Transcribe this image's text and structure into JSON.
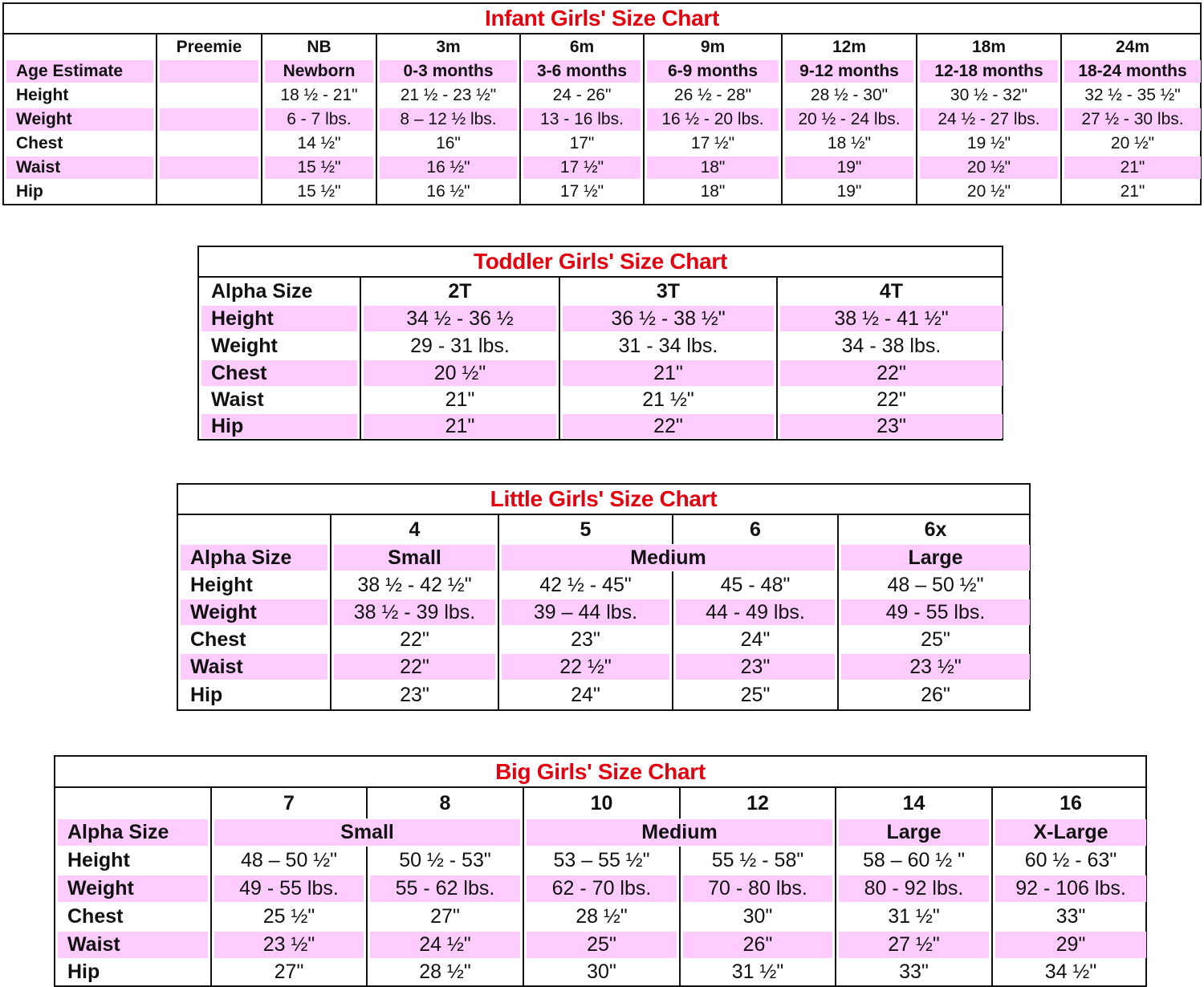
{
  "colors": {
    "title": "#e3000f",
    "highlight": "#ffccff",
    "border": "#111111"
  },
  "charts": [
    {
      "id": "infant",
      "title": "Infant Girls' Size Chart",
      "rows": [
        {
          "label": "",
          "head": true,
          "pink": false,
          "cells": [
            {
              "text": "Preemie"
            },
            {
              "text": "NB"
            },
            {
              "text": "3m"
            },
            {
              "text": "6m"
            },
            {
              "text": "9m"
            },
            {
              "text": "12m"
            },
            {
              "text": "18m"
            },
            {
              "text": "24m"
            }
          ]
        },
        {
          "label": "Age Estimate",
          "head": true,
          "pink": true,
          "cells": [
            {
              "text": ""
            },
            {
              "text": "Newborn"
            },
            {
              "text": "0-3 months"
            },
            {
              "text": "3-6 months"
            },
            {
              "text": "6-9 months"
            },
            {
              "text": "9-12 months"
            },
            {
              "text": "12-18 months"
            },
            {
              "text": "18-24 months"
            }
          ]
        },
        {
          "label": "Height",
          "pink": false,
          "cells": [
            {
              "text": ""
            },
            {
              "text": "18 ½ - 21\""
            },
            {
              "text": "21 ½ - 23 ½\""
            },
            {
              "text": "24 - 26\""
            },
            {
              "text": "26 ½ - 28\""
            },
            {
              "text": "28 ½ - 30\""
            },
            {
              "text": "30 ½ - 32\""
            },
            {
              "text": "32 ½ - 35 ½\""
            }
          ]
        },
        {
          "label": "Weight",
          "pink": true,
          "cells": [
            {
              "text": ""
            },
            {
              "text": "6 - 7 lbs."
            },
            {
              "text": "8 – 12 ½ lbs."
            },
            {
              "text": "13 - 16 lbs."
            },
            {
              "text": "16 ½ - 20 lbs."
            },
            {
              "text": "20 ½ - 24 lbs."
            },
            {
              "text": "24 ½ - 27 lbs."
            },
            {
              "text": "27 ½ - 30 lbs."
            }
          ]
        },
        {
          "label": "Chest",
          "pink": false,
          "cells": [
            {
              "text": ""
            },
            {
              "text": "14 ½\""
            },
            {
              "text": "16\""
            },
            {
              "text": "17\""
            },
            {
              "text": "17 ½\""
            },
            {
              "text": "18 ½\""
            },
            {
              "text": "19 ½\""
            },
            {
              "text": "20 ½\""
            }
          ]
        },
        {
          "label": "Waist",
          "pink": true,
          "cells": [
            {
              "text": ""
            },
            {
              "text": "15 ½\""
            },
            {
              "text": "16 ½\""
            },
            {
              "text": "17 ½\""
            },
            {
              "text": "18\""
            },
            {
              "text": "19\""
            },
            {
              "text": "20 ½\""
            },
            {
              "text": "21\""
            }
          ]
        },
        {
          "label": "Hip",
          "pink": false,
          "cells": [
            {
              "text": ""
            },
            {
              "text": "15 ½\""
            },
            {
              "text": "16 ½\""
            },
            {
              "text": "17 ½\""
            },
            {
              "text": "18\""
            },
            {
              "text": "19\""
            },
            {
              "text": "20 ½\""
            },
            {
              "text": "21\""
            }
          ]
        }
      ]
    },
    {
      "id": "toddler",
      "title": "Toddler Girls' Size Chart",
      "rows": [
        {
          "label": "Alpha Size",
          "head": true,
          "pink": false,
          "cells": [
            {
              "text": "2T"
            },
            {
              "text": "3T"
            },
            {
              "text": "4T"
            }
          ]
        },
        {
          "label": "Height",
          "pink": true,
          "cells": [
            {
              "text": "34 ½ - 36 ½"
            },
            {
              "text": "36 ½ - 38 ½\""
            },
            {
              "text": "38 ½ - 41 ½\""
            }
          ]
        },
        {
          "label": "Weight",
          "pink": false,
          "cells": [
            {
              "text": "29 - 31 lbs."
            },
            {
              "text": "31 - 34 lbs."
            },
            {
              "text": "34 - 38 lbs."
            }
          ]
        },
        {
          "label": "Chest",
          "pink": true,
          "cells": [
            {
              "text": "20 ½\""
            },
            {
              "text": "21\""
            },
            {
              "text": "22\""
            }
          ]
        },
        {
          "label": "Waist",
          "pink": false,
          "cells": [
            {
              "text": "21\""
            },
            {
              "text": "21 ½\""
            },
            {
              "text": "22\""
            }
          ]
        },
        {
          "label": "Hip",
          "pink": true,
          "cells": [
            {
              "text": "21\""
            },
            {
              "text": "22\""
            },
            {
              "text": "23\""
            }
          ]
        }
      ]
    },
    {
      "id": "little",
      "title": "Little Girls' Size Chart",
      "rows": [
        {
          "label": "",
          "head": true,
          "pink": false,
          "cells": [
            {
              "text": "4"
            },
            {
              "text": "5"
            },
            {
              "text": "6"
            },
            {
              "text": "6x"
            }
          ]
        },
        {
          "label": "Alpha Size",
          "head": true,
          "pink": true,
          "cells": [
            {
              "text": "Small"
            },
            {
              "text": "Medium",
              "span": 2
            },
            {
              "text": "Large"
            }
          ]
        },
        {
          "label": "Height",
          "pink": false,
          "cells": [
            {
              "text": "38 ½ - 42 ½\""
            },
            {
              "text": "42 ½ - 45\""
            },
            {
              "text": "45 - 48\""
            },
            {
              "text": "48 – 50 ½\""
            }
          ]
        },
        {
          "label": "Weight",
          "pink": true,
          "cells": [
            {
              "text": "38 ½ - 39 lbs."
            },
            {
              "text": "39 – 44 lbs."
            },
            {
              "text": "44 - 49 lbs."
            },
            {
              "text": "49 - 55 lbs."
            }
          ]
        },
        {
          "label": "Chest",
          "pink": false,
          "cells": [
            {
              "text": "22\""
            },
            {
              "text": "23\""
            },
            {
              "text": "24\""
            },
            {
              "text": "25\""
            }
          ]
        },
        {
          "label": "Waist",
          "pink": true,
          "cells": [
            {
              "text": "22\""
            },
            {
              "text": "22 ½\""
            },
            {
              "text": "23\""
            },
            {
              "text": "23 ½\""
            }
          ]
        },
        {
          "label": "Hip",
          "pink": false,
          "cells": [
            {
              "text": "23\""
            },
            {
              "text": "24\""
            },
            {
              "text": "25\""
            },
            {
              "text": "26\""
            }
          ]
        }
      ]
    },
    {
      "id": "big",
      "title": "Big Girls' Size Chart",
      "rows": [
        {
          "label": "",
          "head": true,
          "pink": false,
          "cells": [
            {
              "text": "7"
            },
            {
              "text": "8"
            },
            {
              "text": "10"
            },
            {
              "text": "12"
            },
            {
              "text": "14"
            },
            {
              "text": "16"
            }
          ]
        },
        {
          "label": "Alpha Size",
          "head": true,
          "pink": true,
          "cells": [
            {
              "text": "Small",
              "span": 2
            },
            {
              "text": "Medium",
              "span": 2
            },
            {
              "text": "Large"
            },
            {
              "text": "X-Large"
            }
          ]
        },
        {
          "label": "Height",
          "pink": false,
          "cells": [
            {
              "text": "48 – 50 ½\""
            },
            {
              "text": "50 ½ - 53\""
            },
            {
              "text": "53 – 55 ½\""
            },
            {
              "text": "55 ½ - 58\""
            },
            {
              "text": "58 – 60 ½ \""
            },
            {
              "text": "60 ½ - 63\""
            }
          ]
        },
        {
          "label": "Weight",
          "pink": true,
          "cells": [
            {
              "text": "49 - 55 lbs."
            },
            {
              "text": "55 - 62 lbs."
            },
            {
              "text": "62 - 70 lbs."
            },
            {
              "text": "70 - 80 lbs."
            },
            {
              "text": "80 - 92 lbs."
            },
            {
              "text": "92 - 106 lbs."
            }
          ]
        },
        {
          "label": "Chest",
          "pink": false,
          "cells": [
            {
              "text": "25 ½\""
            },
            {
              "text": "27\""
            },
            {
              "text": "28 ½\""
            },
            {
              "text": "30\""
            },
            {
              "text": "31 ½\""
            },
            {
              "text": "33\""
            }
          ]
        },
        {
          "label": "Waist",
          "pink": true,
          "cells": [
            {
              "text": "23 ½\""
            },
            {
              "text": "24 ½\""
            },
            {
              "text": "25\""
            },
            {
              "text": "26\""
            },
            {
              "text": "27 ½\""
            },
            {
              "text": "29\""
            }
          ]
        },
        {
          "label": "Hip",
          "pink": false,
          "cells": [
            {
              "text": "27\""
            },
            {
              "text": "28 ½\""
            },
            {
              "text": "30\""
            },
            {
              "text": "31 ½\""
            },
            {
              "text": "33\""
            },
            {
              "text": "34 ½\""
            }
          ]
        }
      ]
    }
  ]
}
